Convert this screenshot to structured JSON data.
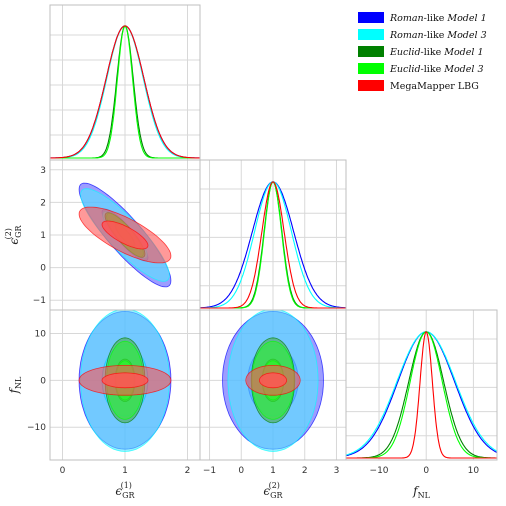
{
  "chart_data": {
    "type": "contour",
    "corner_plot": true,
    "grid": true,
    "legend": {
      "placement": "top-right",
      "entries": [
        {
          "parts": [
            {
              "t": "Roman",
              "i": true
            },
            {
              "t": "-like ",
              "i": false
            },
            {
              "t": "Model 1",
              "i": true
            }
          ],
          "color": "#0000ff"
        },
        {
          "parts": [
            {
              "t": "Roman",
              "i": true
            },
            {
              "t": "-like ",
              "i": false
            },
            {
              "t": "Model 3",
              "i": true
            }
          ],
          "color": "#00ffff"
        },
        {
          "parts": [
            {
              "t": "Euclid",
              "i": true
            },
            {
              "t": "-like ",
              "i": false
            },
            {
              "t": "Model 1",
              "i": true
            }
          ],
          "color": "#008000"
        },
        {
          "parts": [
            {
              "t": "Euclid",
              "i": true
            },
            {
              "t": "-like ",
              "i": false
            },
            {
              "t": "Model 3",
              "i": true
            }
          ],
          "color": "#00ff00"
        },
        {
          "parts": [
            {
              "t": "MegaMapper LBG",
              "i": false
            }
          ],
          "color": "#ff0000"
        }
      ]
    },
    "parameters": [
      {
        "key": "eps1",
        "label_main": "ϵ",
        "label_sub": "GR",
        "label_sup": "(1)",
        "range": [
          -0.2,
          2.2
        ],
        "ticks": [
          0,
          1,
          2
        ],
        "tick_labels": [
          "0",
          "1",
          "2"
        ]
      },
      {
        "key": "eps2",
        "label_main": "ϵ",
        "label_sub": "GR",
        "label_sup": "(2)",
        "range": [
          -1.3,
          3.3
        ],
        "ticks": [
          -1,
          0,
          1,
          2,
          3
        ],
        "tick_labels": [
          "−1",
          "0",
          "1",
          "2",
          "3"
        ]
      },
      {
        "key": "fnl",
        "label_main": "f",
        "label_sub": "NL",
        "label_sup": "",
        "range": [
          -17,
          15
        ],
        "ticks": [
          -10,
          0,
          10
        ],
        "tick_labels": [
          "−10",
          "0",
          "10"
        ]
      }
    ],
    "series": [
      {
        "color": "#0000ff",
        "fill": "#5c5cff",
        "mean": [
          1.0,
          1.0,
          0.0
        ],
        "sigma": [
          0.3,
          0.65,
          6.0
        ],
        "corr": {
          "eps1_eps2": -0.88,
          "eps1_fnl": 0.0,
          "eps2_fnl": 0.0
        },
        "peaks": [
          0.81,
          0.8,
          0.8
        ]
      },
      {
        "color": "#00ffff",
        "fill": "#55e6ff",
        "mean": [
          1.0,
          1.0,
          0.0
        ],
        "sigma": [
          0.29,
          0.58,
          6.2
        ],
        "corr": {
          "eps1_eps2": -0.87,
          "eps1_fnl": 0.0,
          "eps2_fnl": 0.0
        },
        "peaks": [
          0.81,
          0.8,
          0.8
        ]
      },
      {
        "color": "#008000",
        "fill": "#4fa84f",
        "mean": [
          1.0,
          1.0,
          0.0
        ],
        "sigma": [
          0.13,
          0.28,
          3.7
        ],
        "corr": {
          "eps1_eps2": -0.85,
          "eps1_fnl": 0.0,
          "eps2_fnl": 0.0
        },
        "peaks": [
          0.81,
          0.8,
          0.8
        ]
      },
      {
        "color": "#00ff00",
        "fill": "#33ee33",
        "mean": [
          1.0,
          1.0,
          0.0
        ],
        "sigma": [
          0.12,
          0.27,
          3.4
        ],
        "corr": {
          "eps1_eps2": -0.85,
          "eps1_fnl": 0.0,
          "eps2_fnl": 0.0
        },
        "peaks": [
          0.81,
          0.8,
          0.8
        ]
      },
      {
        "color": "#ff0000",
        "fill": "#ff5555",
        "mean": [
          1.0,
          1.0,
          0.0
        ],
        "sigma": [
          0.3,
          0.35,
          1.3
        ],
        "corr": {
          "eps1_eps2": -0.75,
          "eps1_fnl": 0.0,
          "eps2_fnl": 0.0
        },
        "peaks": [
          0.81,
          0.8,
          0.8
        ]
      }
    ]
  }
}
